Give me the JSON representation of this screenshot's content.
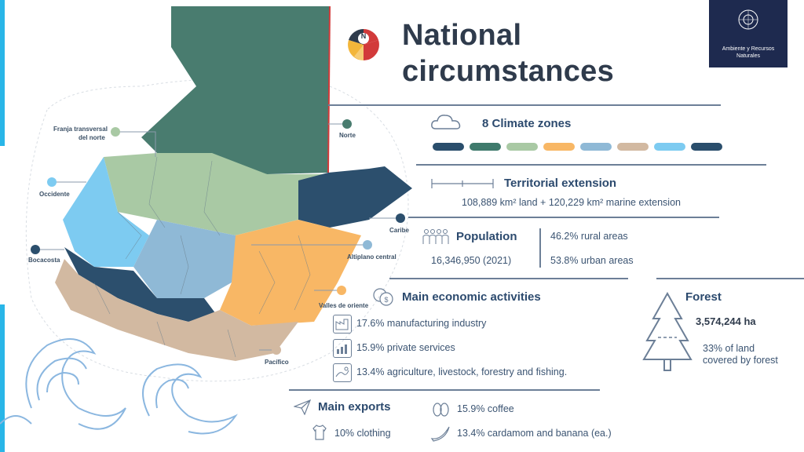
{
  "title": {
    "line1": "National",
    "line2": "circumstances"
  },
  "logo": {
    "org_line1": "Ambiente y Recursos",
    "org_line2": "Naturales"
  },
  "compass": {
    "letter": "N"
  },
  "climate": {
    "label": "8 Climate zones",
    "colors": [
      "#2a4e6c",
      "#3f7a6c",
      "#a9c9a4",
      "#f8b765",
      "#8fb9d6",
      "#d2b9a1",
      "#7dcbf1",
      "#2a4e6c"
    ]
  },
  "territory": {
    "label": "Territorial extension",
    "value": "108,889 km² land + 120,229 km² marine extension"
  },
  "population": {
    "label": "Population",
    "value": "16,346,950 (2021)",
    "rural": "46.2% rural areas",
    "urban": "53.8% urban areas"
  },
  "economy": {
    "label": "Main economic activities",
    "items": [
      {
        "text": "17.6% manufacturing industry"
      },
      {
        "text": "15.9% private services"
      },
      {
        "text": "13.4% agriculture, livestock, forestry and fishing."
      }
    ]
  },
  "forest": {
    "label": "Forest",
    "area": "3,574,244 ha",
    "share_line1": "33% of land",
    "share_line2": "covered by forest"
  },
  "exports": {
    "label": "Main exports",
    "clothing": "10% clothing",
    "coffee": "15.9% coffee",
    "cardamom": "13.4% cardamom and banana (ea.)"
  },
  "map_labels": {
    "franja_1": "Franja transversal",
    "franja_2": "del norte",
    "norte": "Norte",
    "occidente": "Occidente",
    "caribe": "Caribe",
    "bocacosta": "Bocacosta",
    "altiplano": "Altiplano central",
    "valles": "Valles de oriente",
    "pacifico": "Pacífico"
  }
}
